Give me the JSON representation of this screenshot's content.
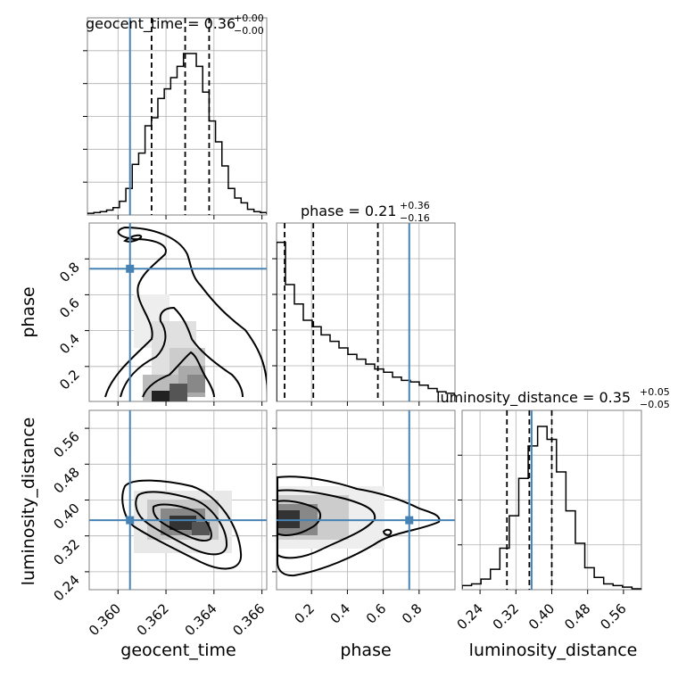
{
  "chart_data": {
    "type": "corner",
    "parameters": [
      "geocent_time",
      "phase",
      "luminosity_distance"
    ],
    "truths": {
      "geocent_time": 0.3605,
      "phase": 0.745,
      "luminosity_distance": 0.355
    },
    "ranges": {
      "geocent_time": [
        0.3588,
        0.3662
      ],
      "phase": [
        0.005,
        1.0
      ],
      "luminosity_distance": [
        0.2,
        0.6
      ]
    },
    "ticks": {
      "geocent_time": {
        "values": [
          0.36,
          0.362,
          0.364,
          0.366
        ],
        "labels": [
          "0.360",
          "0.362",
          "0.364",
          "0.366"
        ]
      },
      "phase": {
        "values": [
          0.2,
          0.4,
          0.6,
          0.8
        ],
        "labels": [
          "0.2",
          "0.4",
          "0.6",
          "0.8"
        ]
      },
      "luminosity_distance": {
        "values": [
          0.24,
          0.32,
          0.4,
          0.48,
          0.56
        ],
        "labels": [
          "0.24",
          "0.32",
          "0.40",
          "0.48",
          "0.56"
        ]
      }
    },
    "titles": {
      "geocent_time": {
        "base": "geocent_time = 0.36",
        "plus": "+0.00",
        "minus": "−0.00"
      },
      "phase": {
        "base": "phase = 0.21",
        "plus": "+0.36",
        "minus": "−0.16"
      },
      "luminosity_distance": {
        "base": "luminosity_distance = 0.35",
        "plus": "+0.05",
        "minus": "−0.05"
      }
    },
    "quantiles": {
      "geocent_time": [
        0.3614,
        0.3628,
        0.3638
      ],
      "phase": [
        0.05,
        0.21,
        0.57
      ],
      "luminosity_distance": [
        0.3,
        0.35,
        0.4
      ]
    },
    "histograms": {
      "geocent_time": [
        0.005,
        0.01,
        0.015,
        0.025,
        0.04,
        0.08,
        0.16,
        0.31,
        0.38,
        0.55,
        0.6,
        0.72,
        0.78,
        0.85,
        0.92,
        1.0,
        1.0,
        0.92,
        0.76,
        0.58,
        0.45,
        0.3,
        0.16,
        0.1,
        0.07,
        0.03,
        0.015,
        0.01
      ],
      "phase": [
        0.98,
        0.72,
        0.6,
        0.5,
        0.46,
        0.41,
        0.37,
        0.33,
        0.29,
        0.26,
        0.23,
        0.2,
        0.18,
        0.15,
        0.13,
        0.12,
        0.1,
        0.08,
        0.06,
        0.05
      ],
      "luminosity_distance": [
        0.02,
        0.03,
        0.06,
        0.12,
        0.25,
        0.45,
        0.68,
        0.88,
        1.0,
        0.92,
        0.72,
        0.48,
        0.28,
        0.13,
        0.07,
        0.03,
        0.02,
        0.01,
        0.0
      ]
    },
    "grid": true,
    "axis_labels": {
      "geocent_time": "geocent_time",
      "phase": "phase",
      "luminosity_distance": "luminosity_distance"
    },
    "colors": {
      "truth": "#4682b4",
      "line": "#000000",
      "grid": "#b0b0b0"
    }
  }
}
